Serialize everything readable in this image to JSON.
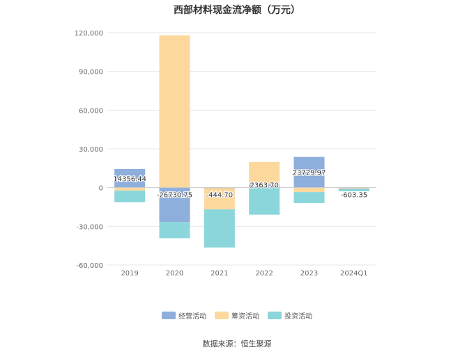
{
  "chart_data": {
    "type": "bar",
    "stacked": true,
    "title": "西部材料现金流净额（万元）",
    "categories": [
      "2019",
      "2020",
      "2021",
      "2022",
      "2023",
      "2024Q1"
    ],
    "series": [
      {
        "name": "经营活动",
        "color": "#8eaedc",
        "values": [
          14356.44,
          -26730.75,
          -444.7,
          2363.7,
          23729.97,
          -603.35
        ]
      },
      {
        "name": "筹资活动",
        "color": "#fdd89d",
        "values": [
          -2400,
          118000,
          -16500,
          17500,
          -3500,
          -500
        ]
      },
      {
        "name": "投资活动",
        "color": "#8ad6da",
        "values": [
          -9000,
          -12500,
          -29500,
          -21000,
          -8500,
          -1800
        ]
      }
    ],
    "data_labels": [
      "14356.44",
      "-26730.75",
      "-444.70",
      "2363.70",
      "23729.97",
      "-603.35"
    ],
    "y_ticks": [
      120000,
      90000,
      60000,
      30000,
      0,
      -30000,
      -60000
    ],
    "y_tick_labels": [
      "120,000",
      "90,000",
      "60,000",
      "30,000",
      "0",
      "-30,000",
      "-60,000"
    ],
    "ylim": [
      -60000,
      120000
    ],
    "xlabel": "",
    "ylabel": "",
    "grid": true,
    "legend_position": "bottom"
  },
  "source": "数据来源：恒生聚源"
}
